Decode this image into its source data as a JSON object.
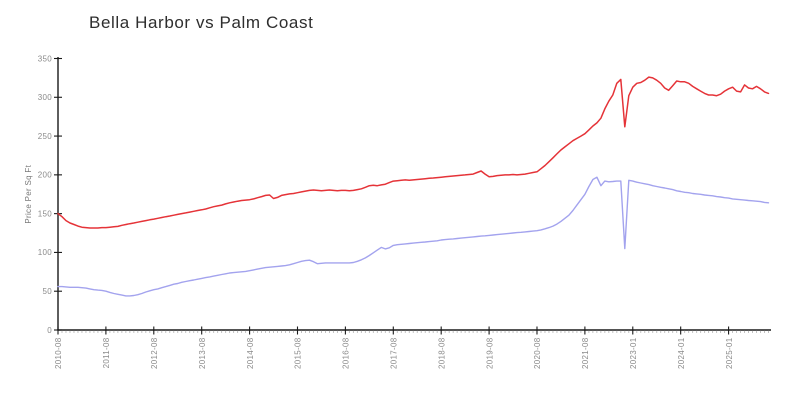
{
  "page": {
    "background": "#ffffff"
  },
  "chart": {
    "title": "Bella Harbor vs Palm Coast",
    "ylabel": "Price Per Sq Ft"
  },
  "chart_data": {
    "type": "line",
    "title": "Bella Harbor vs Palm Coast",
    "xlabel": "",
    "ylabel": "Price Per Sq Ft",
    "ylim": [
      0,
      350
    ],
    "yticks": [
      0,
      50,
      100,
      150,
      200,
      250,
      300,
      350
    ],
    "x_tick_labels": [
      "2010-08",
      "2011-08",
      "2012-08",
      "2013-08",
      "2014-08",
      "2015-08",
      "2016-08",
      "2017-08",
      "2018-08",
      "2019-08",
      "2020-08",
      "2021-08",
      "2023-01",
      "2024-01",
      "2025-01"
    ],
    "x_tick_every_n_points": 12,
    "grid": false,
    "legend": "none",
    "axis_color": "#1a1a1a",
    "tick_label_color": "#8a8a8a",
    "minor_tick_color": "#bbbbbb",
    "series": [
      {
        "name": "Bella Harbor",
        "color": "#e53338",
        "stroke_width": 1.5,
        "values": [
          150,
          146,
          141,
          138,
          136,
          134,
          132.5,
          132,
          131.5,
          131.5,
          131.5,
          132,
          132,
          132.5,
          133,
          133.5,
          135,
          136,
          137,
          138,
          139,
          140,
          141,
          142,
          143,
          144,
          145,
          146,
          147,
          148,
          149,
          150,
          151,
          152,
          153,
          154,
          155,
          156,
          157.5,
          159,
          160,
          161,
          162.5,
          164,
          165,
          166,
          167,
          167.5,
          168,
          169,
          170.5,
          172,
          173.5,
          174,
          169.5,
          171,
          173.5,
          174.5,
          175.5,
          176,
          177,
          178,
          179,
          180,
          180.5,
          180,
          179.5,
          180,
          180.5,
          180,
          179.5,
          180,
          180,
          179.5,
          180,
          181,
          182,
          184,
          186,
          186.5,
          186,
          187,
          188,
          190,
          192,
          192.5,
          193,
          193.5,
          193,
          193.5,
          194,
          194.5,
          195,
          195.5,
          196,
          196.5,
          197,
          197.5,
          198,
          198.5,
          199,
          199.5,
          200,
          200.5,
          201,
          203,
          205,
          201,
          197.5,
          198,
          199,
          199.5,
          200,
          200,
          200.5,
          200,
          200.5,
          201,
          202,
          203,
          204,
          208,
          212,
          217,
          222,
          227,
          232,
          236,
          240,
          244,
          247,
          250,
          253,
          258,
          263,
          267,
          273,
          285,
          295,
          303,
          318,
          323,
          262,
          302,
          313,
          318,
          319,
          322,
          326,
          325,
          322,
          318,
          312,
          309,
          315,
          321,
          320,
          320,
          318,
          314,
          311,
          308,
          305,
          303,
          303,
          302,
          304,
          308,
          311,
          313,
          308,
          307,
          316,
          312,
          311,
          314,
          311,
          307,
          305
        ]
      },
      {
        "name": "Palm Coast",
        "color": "#a3a3ee",
        "stroke_width": 1.4,
        "values": [
          56,
          56,
          55.5,
          55,
          55,
          55,
          54.5,
          54,
          53,
          52,
          51.5,
          51,
          50,
          48.5,
          47,
          46,
          45,
          44,
          44,
          44.5,
          45.5,
          47,
          49,
          50.5,
          52,
          53,
          54.5,
          56,
          57.5,
          59,
          60,
          61.5,
          62.5,
          63.5,
          64.5,
          65.5,
          66.5,
          67.5,
          68.5,
          69.5,
          70.5,
          71.5,
          72.5,
          73.5,
          74,
          74.5,
          75,
          75.5,
          76.5,
          77.5,
          78.5,
          79.5,
          80.5,
          81,
          81.5,
          82,
          82.5,
          83,
          84,
          85.5,
          87,
          88.5,
          89.5,
          90,
          88,
          85.5,
          86,
          86.5,
          86.5,
          86.5,
          86.5,
          86.5,
          86.5,
          86.5,
          87,
          88.5,
          90.5,
          93,
          96,
          99.5,
          103,
          106.5,
          104.5,
          106,
          109,
          110,
          110.5,
          111,
          111.5,
          112,
          112.5,
          113,
          113.5,
          114,
          114.5,
          115,
          116,
          116.5,
          117,
          117.5,
          118,
          118.5,
          119,
          119.5,
          120,
          120.5,
          121,
          121.5,
          122,
          122.5,
          123,
          123.5,
          124,
          124.5,
          125,
          125.5,
          126,
          126.5,
          127,
          127.5,
          128,
          129,
          130.5,
          132,
          134,
          136.5,
          140,
          144,
          148,
          154,
          161,
          168,
          175,
          185,
          194,
          197,
          186,
          192,
          191,
          191.5,
          192,
          192,
          105,
          193,
          192,
          190.5,
          189.5,
          188.5,
          187.5,
          186,
          185,
          184,
          183,
          182,
          181,
          179.5,
          178.5,
          177.5,
          177,
          176,
          175.5,
          175,
          174,
          173.5,
          173,
          172,
          171.5,
          170.5,
          170,
          169,
          168.5,
          168,
          167.5,
          167,
          166.5,
          166,
          165.5,
          164.5,
          164
        ]
      }
    ]
  }
}
